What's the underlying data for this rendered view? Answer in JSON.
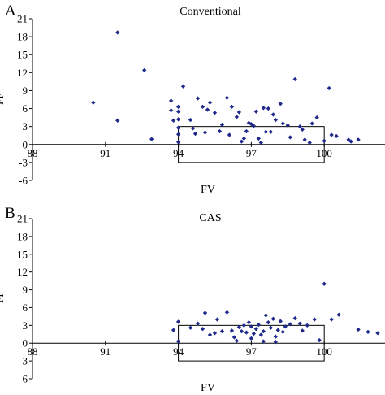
{
  "chart_data": [
    {
      "type": "scatter",
      "panel_label": "A",
      "title": "Conventional",
      "xlabel": "FV",
      "ylabel": "FF",
      "xlim": [
        88,
        102.5
      ],
      "ylim": [
        -6,
        21
      ],
      "x_ticks": [
        88,
        91,
        94,
        97,
        100
      ],
      "y_ticks": [
        -6,
        -3,
        0,
        3,
        6,
        9,
        12,
        15,
        18,
        21
      ],
      "grid": false,
      "marker_color": "#1f2a8a",
      "reference_box": {
        "x": [
          94,
          100
        ],
        "y": [
          -3,
          3
        ]
      },
      "points": [
        [
          90.5,
          7.0
        ],
        [
          91.5,
          18.7
        ],
        [
          91.5,
          4.0
        ],
        [
          92.6,
          12.4
        ],
        [
          92.9,
          0.9
        ],
        [
          93.7,
          7.3
        ],
        [
          93.7,
          5.7
        ],
        [
          93.8,
          4.0
        ],
        [
          94.0,
          6.3
        ],
        [
          94.0,
          5.5
        ],
        [
          94.0,
          4.2
        ],
        [
          94.0,
          2.8
        ],
        [
          94.0,
          1.7
        ],
        [
          94.0,
          0.4
        ],
        [
          94.2,
          9.7
        ],
        [
          94.5,
          4.1
        ],
        [
          94.6,
          2.7
        ],
        [
          94.7,
          1.8
        ],
        [
          94.8,
          7.7
        ],
        [
          95.0,
          6.3
        ],
        [
          95.1,
          2.0
        ],
        [
          95.2,
          5.8
        ],
        [
          95.3,
          7.0
        ],
        [
          95.5,
          5.3
        ],
        [
          95.7,
          2.2
        ],
        [
          95.8,
          3.3
        ],
        [
          96.0,
          7.8
        ],
        [
          96.1,
          1.6
        ],
        [
          96.2,
          6.3
        ],
        [
          96.4,
          4.6
        ],
        [
          96.5,
          5.4
        ],
        [
          96.6,
          0.5
        ],
        [
          96.7,
          1.0
        ],
        [
          96.8,
          2.2
        ],
        [
          96.9,
          3.6
        ],
        [
          97.0,
          3.4
        ],
        [
          97.1,
          3.1
        ],
        [
          97.2,
          5.5
        ],
        [
          97.3,
          1.0
        ],
        [
          97.4,
          0.3
        ],
        [
          97.5,
          6.1
        ],
        [
          97.6,
          2.1
        ],
        [
          97.7,
          6.0
        ],
        [
          97.8,
          2.1
        ],
        [
          97.9,
          5.0
        ],
        [
          98.0,
          4.1
        ],
        [
          98.2,
          6.8
        ],
        [
          98.3,
          3.5
        ],
        [
          98.5,
          3.2
        ],
        [
          98.6,
          1.2
        ],
        [
          98.8,
          10.9
        ],
        [
          99.0,
          3.0
        ],
        [
          99.1,
          2.5
        ],
        [
          99.2,
          0.8
        ],
        [
          99.4,
          0.3
        ],
        [
          99.5,
          3.5
        ],
        [
          99.7,
          4.5
        ],
        [
          100.0,
          0.6
        ],
        [
          100.2,
          9.4
        ],
        [
          100.3,
          1.6
        ],
        [
          100.5,
          1.4
        ],
        [
          101.0,
          0.8
        ],
        [
          101.1,
          0.5
        ],
        [
          101.4,
          0.8
        ]
      ]
    },
    {
      "type": "scatter",
      "panel_label": "B",
      "title": "CAS",
      "xlabel": "FV",
      "ylabel": "FF",
      "xlim": [
        88,
        102.5
      ],
      "ylim": [
        -6,
        21
      ],
      "x_ticks": [
        88,
        91,
        94,
        97,
        100
      ],
      "y_ticks": [
        -6,
        -3,
        0,
        3,
        6,
        9,
        12,
        15,
        18,
        21
      ],
      "grid": false,
      "marker_color": "#1f2a8a",
      "reference_box": {
        "x": [
          94,
          100
        ],
        "y": [
          -3,
          3
        ]
      },
      "points": [
        [
          93.8,
          2.2
        ],
        [
          94.0,
          3.6
        ],
        [
          94.0,
          0.3
        ],
        [
          94.5,
          2.6
        ],
        [
          94.8,
          3.3
        ],
        [
          95.0,
          2.4
        ],
        [
          95.1,
          5.1
        ],
        [
          95.3,
          1.4
        ],
        [
          95.5,
          1.7
        ],
        [
          95.6,
          4.0
        ],
        [
          95.8,
          2.0
        ],
        [
          96.0,
          5.2
        ],
        [
          96.2,
          2.1
        ],
        [
          96.3,
          1.0
        ],
        [
          96.4,
          0.4
        ],
        [
          96.5,
          2.7
        ],
        [
          96.6,
          2.0
        ],
        [
          96.7,
          3.0
        ],
        [
          96.8,
          1.8
        ],
        [
          96.9,
          3.5
        ],
        [
          97.0,
          2.8
        ],
        [
          97.0,
          0.8
        ],
        [
          97.1,
          1.6
        ],
        [
          97.2,
          2.4
        ],
        [
          97.3,
          3.1
        ],
        [
          97.4,
          1.4
        ],
        [
          97.5,
          2.0
        ],
        [
          97.5,
          0.3
        ],
        [
          97.6,
          4.7
        ],
        [
          97.7,
          3.5
        ],
        [
          97.8,
          2.6
        ],
        [
          97.9,
          4.1
        ],
        [
          98.0,
          1.1
        ],
        [
          98.0,
          0.2
        ],
        [
          98.1,
          2.2
        ],
        [
          98.2,
          3.7
        ],
        [
          98.3,
          1.9
        ],
        [
          98.4,
          2.8
        ],
        [
          98.6,
          3.2
        ],
        [
          98.8,
          4.2
        ],
        [
          99.0,
          3.3
        ],
        [
          99.1,
          2.1
        ],
        [
          99.3,
          3.0
        ],
        [
          99.6,
          4.0
        ],
        [
          99.8,
          0.5
        ],
        [
          100.0,
          10.0
        ],
        [
          100.3,
          4.0
        ],
        [
          100.6,
          4.8
        ],
        [
          101.4,
          2.3
        ],
        [
          101.8,
          1.9
        ],
        [
          102.2,
          1.7
        ]
      ]
    }
  ]
}
